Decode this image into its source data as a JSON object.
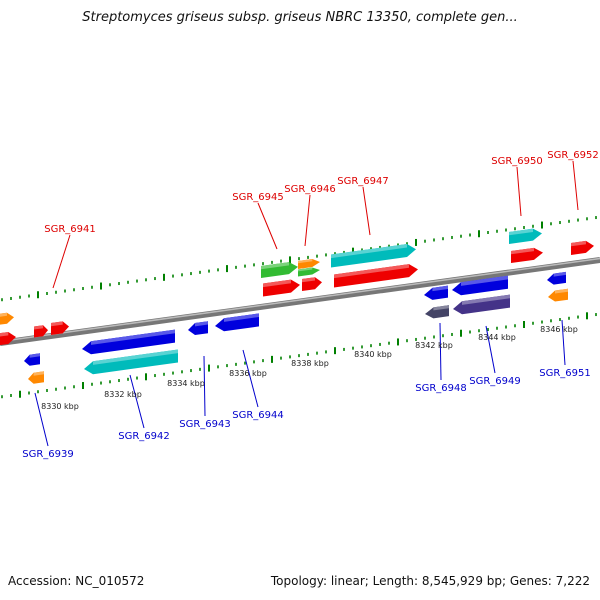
{
  "title": "Streptomyces griseus subsp. griseus NBRC 13350, complete gen...",
  "accession_label": "Accession: NC_010572",
  "stats_label": "Topology: linear; Length: 8,545,929 bp; Genes: 7,222",
  "colors": {
    "forward_label": "#dd0000",
    "reverse_label": "#0000cc",
    "tick": "#008000",
    "backbone": "#888888"
  },
  "kbp_labels": [
    "8330 kbp",
    "8332 kbp",
    "8334 kbp",
    "8336 kbp",
    "8338 kbp",
    "8340 kbp",
    "8342 kbp",
    "8344 kbp",
    "8346 kbp"
  ],
  "gene_labels": {
    "forward": [
      "SGR_6941",
      "SGR_6945",
      "SGR_6946",
      "SGR_6947",
      "SGR_6950",
      "SGR_6952"
    ],
    "reverse": [
      "SGR_6939",
      "SGR_6942",
      "SGR_6943",
      "SGR_6944",
      "SGR_6948",
      "SGR_6949",
      "SGR_6951"
    ]
  }
}
